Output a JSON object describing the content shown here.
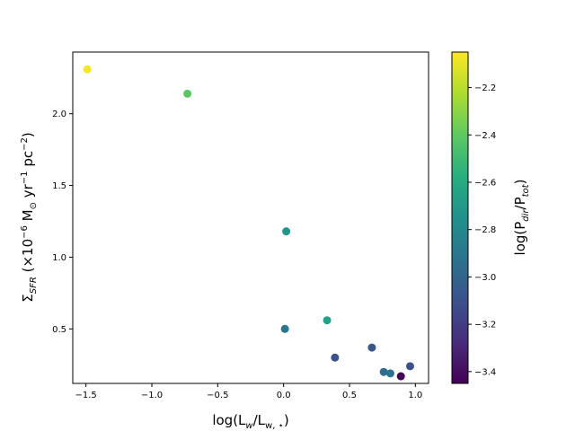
{
  "chart_data": {
    "type": "scatter",
    "xlabel_main": "log(L",
    "xlabel_sub1": "w",
    "xlabel_mid": "/L",
    "xlabel_sub2": "w, ⋆",
    "xlabel_end": ")",
    "ylabel_sigma": "Σ",
    "ylabel_sub": "SFR",
    "ylabel_mid": " (×10",
    "ylabel_exp1": "−6",
    "ylabel_units": " M",
    "ylabel_sun": "⊙",
    "ylabel_yr": " yr",
    "ylabel_exp2": "−1",
    "ylabel_pc": " pc",
    "ylabel_exp3": "−2",
    "ylabel_end": ")",
    "colorbar_label_main": "log(P",
    "colorbar_sub1": "dir",
    "colorbar_mid": "/P",
    "colorbar_sub2": "tot",
    "colorbar_end": ")",
    "xlim": [
      -1.6,
      1.1
    ],
    "ylim": [
      0.12,
      2.43
    ],
    "clim": [
      -3.45,
      -2.05
    ],
    "colormap": "viridis",
    "grid": false,
    "x_ticks": [
      -1.5,
      -1.0,
      -0.5,
      0.0,
      0.5,
      1.0
    ],
    "x_tick_labels": [
      "−1.5",
      "−1.0",
      "−0.5",
      "0.0",
      "0.5",
      "1.0"
    ],
    "y_ticks": [
      0.5,
      1.0,
      1.5,
      2.0
    ],
    "y_tick_labels": [
      "0.5",
      "1.0",
      "1.5",
      "2.0"
    ],
    "c_ticks": [
      -3.4,
      -3.2,
      -3.0,
      -2.8,
      -2.6,
      -2.4,
      -2.2
    ],
    "c_tick_labels": [
      "−3.4",
      "−3.2",
      "−3.0",
      "−2.8",
      "−2.6",
      "−2.4",
      "−2.2"
    ],
    "points": [
      {
        "x": -1.49,
        "y": 2.31,
        "c": -2.06
      },
      {
        "x": -0.73,
        "y": 2.14,
        "c": -2.42
      },
      {
        "x": 0.02,
        "y": 1.18,
        "c": -2.72
      },
      {
        "x": 0.33,
        "y": 0.56,
        "c": -2.66
      },
      {
        "x": 0.01,
        "y": 0.5,
        "c": -2.9
      },
      {
        "x": 0.67,
        "y": 0.37,
        "c": -3.08
      },
      {
        "x": 0.39,
        "y": 0.3,
        "c": -3.1
      },
      {
        "x": 0.96,
        "y": 0.24,
        "c": -3.11
      },
      {
        "x": 0.76,
        "y": 0.2,
        "c": -2.96
      },
      {
        "x": 0.81,
        "y": 0.19,
        "c": -2.92
      },
      {
        "x": 0.89,
        "y": 0.17,
        "c": -3.44
      }
    ]
  }
}
